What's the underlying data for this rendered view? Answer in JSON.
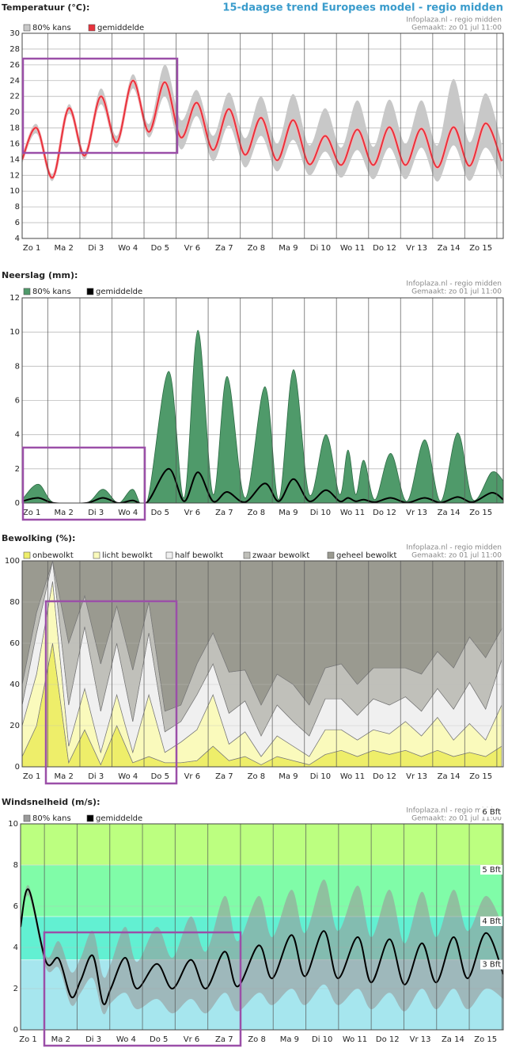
{
  "header": {
    "title": "15-daagse trend Europees model - regio midden"
  },
  "chart_data": [
    {
      "type": "line",
      "title": "Temperatuur (°C):",
      "source": "Infoplaza.nl - regio midden",
      "made": "Gemaakt: zo 01 jul 11:00",
      "x": [
        0.2,
        0.65,
        1.15,
        1.65,
        2.15,
        2.65,
        3.15,
        3.65,
        4.15,
        4.65,
        5.15,
        5.65,
        6.15,
        6.65,
        7.15,
        7.65,
        8.15,
        8.65,
        9.15,
        9.65,
        10.15,
        10.65,
        11.15,
        11.65,
        12.15,
        12.65,
        13.15,
        13.65,
        14.15,
        14.65,
        15.15
      ],
      "xlim": [
        0.2,
        15.2
      ],
      "xticks": [
        {
          "value": 0.5,
          "label": "Zo 1"
        },
        {
          "value": 1.5,
          "label": "Ma 2"
        },
        {
          "value": 2.5,
          "label": "Di 3"
        },
        {
          "value": 3.5,
          "label": "Wo 4"
        },
        {
          "value": 4.5,
          "label": "Do 5"
        },
        {
          "value": 5.5,
          "label": "Vr 6"
        },
        {
          "value": 6.5,
          "label": "Za 7"
        },
        {
          "value": 7.5,
          "label": "Zo 8"
        },
        {
          "value": 8.5,
          "label": "Ma 9"
        },
        {
          "value": 9.5,
          "label": "Di 10"
        },
        {
          "value": 10.5,
          "label": "Wo 11"
        },
        {
          "value": 11.5,
          "label": "Do 12"
        },
        {
          "value": 12.5,
          "label": "Vr 13"
        },
        {
          "value": 13.5,
          "label": "Za 14"
        },
        {
          "value": 14.5,
          "label": "Zo 15"
        }
      ],
      "ylim": [
        4,
        30
      ],
      "yticks": [
        4,
        6,
        8,
        10,
        12,
        14,
        16,
        18,
        20,
        22,
        24,
        26,
        28,
        30
      ],
      "grid": true,
      "series": [
        {
          "name": "80% kans",
          "color": "#c8c8c8",
          "low": [
            13.5,
            17.3,
            11.3,
            19.8,
            14,
            21,
            15.5,
            23,
            16.8,
            22,
            15.3,
            19.5,
            13.8,
            18.3,
            13,
            17,
            12.5,
            16.5,
            12,
            15,
            11.7,
            15.2,
            11.5,
            15.5,
            11.5,
            15.5,
            11.2,
            15.8,
            11.3,
            15.5,
            11.5
          ],
          "high": [
            14.5,
            18.5,
            12.2,
            21,
            15,
            23,
            17,
            24.8,
            18.5,
            26,
            19,
            22.8,
            17,
            22.5,
            16.7,
            22,
            16,
            22.3,
            15.8,
            20.5,
            15.5,
            21.5,
            15.6,
            21.6,
            16,
            21.5,
            15.8,
            24.2,
            16.2,
            22.4,
            16
          ]
        },
        {
          "name": "gemiddelde",
          "color": "#e8323c",
          "values": [
            14,
            18,
            11.7,
            20.5,
            14.5,
            22,
            16.2,
            24,
            17.5,
            23.8,
            16.8,
            21.2,
            15.2,
            20.4,
            14.6,
            19.3,
            13.9,
            19,
            13.4,
            17,
            13.3,
            17.8,
            13.3,
            18.1,
            13.3,
            17.9,
            13,
            18.1,
            13.2,
            18.6,
            13.8
          ]
        }
      ]
    },
    {
      "type": "area",
      "title": "Neerslag (mm):",
      "source": "Infoplaza.nl - regio midden",
      "made": "Gemaakt: zo 01 jul 11:00",
      "x": [
        0.2,
        0.7,
        1.2,
        2.2,
        2.72,
        3.2,
        3.64,
        4.1,
        4.77,
        5.25,
        5.68,
        6.15,
        6.59,
        7.15,
        7.77,
        8.2,
        8.66,
        9.15,
        9.67,
        10.1,
        10.36,
        10.6,
        10.85,
        11.2,
        11.69,
        12.2,
        12.75,
        13.25,
        13.78,
        14.25,
        14.84,
        15.2
      ],
      "xlim": [
        0.2,
        15.2
      ],
      "xticks": [
        {
          "value": 0.5,
          "label": "Zo 1"
        },
        {
          "value": 1.5,
          "label": "Ma 2"
        },
        {
          "value": 2.5,
          "label": "Di 3"
        },
        {
          "value": 3.5,
          "label": "Wo 4"
        },
        {
          "value": 4.5,
          "label": "Do 5"
        },
        {
          "value": 5.5,
          "label": "Vr 6"
        },
        {
          "value": 6.5,
          "label": "Za 7"
        },
        {
          "value": 7.5,
          "label": "Zo 8"
        },
        {
          "value": 8.5,
          "label": "Ma 9"
        },
        {
          "value": 9.5,
          "label": "Di 10"
        },
        {
          "value": 10.5,
          "label": "Wo 11"
        },
        {
          "value": 11.5,
          "label": "Do 12"
        },
        {
          "value": 12.5,
          "label": "Vr 13"
        },
        {
          "value": 13.5,
          "label": "Za 14"
        },
        {
          "value": 14.5,
          "label": "Zo 15"
        }
      ],
      "ylim": [
        0,
        12
      ],
      "yticks": [
        0,
        2,
        4,
        6,
        8,
        10,
        12
      ],
      "grid": true,
      "series": [
        {
          "name": "80% kans",
          "color": "#4f9a6a",
          "values": [
            0.2,
            1.1,
            0,
            0,
            0.8,
            0,
            0.8,
            0.1,
            7.7,
            0.3,
            10.1,
            0.5,
            7.4,
            0.3,
            6.8,
            0.2,
            7.8,
            0.5,
            4,
            0.5,
            3.1,
            0.5,
            2.5,
            0.2,
            2.9,
            0.1,
            3.7,
            0.1,
            4.1,
            0.2,
            1.8,
            1.3
          ]
        },
        {
          "name": "gemiddelde",
          "color": "#000000",
          "values": [
            0.1,
            0.3,
            0,
            0,
            0.3,
            0,
            0.15,
            0.05,
            2,
            0.1,
            1.8,
            0.1,
            0.65,
            0.05,
            1.15,
            0.1,
            1.4,
            0.1,
            0.75,
            0.1,
            0.3,
            0.1,
            0.2,
            0.05,
            0.3,
            0.02,
            0.3,
            0.02,
            0.35,
            0.05,
            0.6,
            0.2
          ]
        }
      ]
    },
    {
      "type": "stacked_area",
      "title": "Bewolking (%):",
      "source": "Infoplaza.nl - regio midden",
      "made": "Gemaakt: zo 01 jul 11:00",
      "x": [
        0.2,
        0.65,
        1.15,
        1.65,
        2.15,
        2.65,
        3.15,
        3.65,
        4.15,
        4.65,
        5.15,
        5.65,
        6.15,
        6.65,
        7.15,
        7.65,
        8.15,
        8.65,
        9.15,
        9.65,
        10.15,
        10.65,
        11.15,
        11.65,
        12.15,
        12.65,
        13.15,
        13.65,
        14.15,
        14.65,
        15.15
      ],
      "xlim": [
        0.2,
        15.2
      ],
      "xticks": [
        {
          "value": 0.5,
          "label": "Zo 1"
        },
        {
          "value": 1.5,
          "label": "Ma 2"
        },
        {
          "value": 2.5,
          "label": "Di 3"
        },
        {
          "value": 3.5,
          "label": "Wo 4"
        },
        {
          "value": 4.5,
          "label": "Do 5"
        },
        {
          "value": 5.5,
          "label": "Vr 6"
        },
        {
          "value": 6.5,
          "label": "Za 7"
        },
        {
          "value": 7.5,
          "label": "Zo 8"
        },
        {
          "value": 8.5,
          "label": "Ma 9"
        },
        {
          "value": 9.5,
          "label": "Di 10"
        },
        {
          "value": 10.5,
          "label": "Wo 11"
        },
        {
          "value": 11.5,
          "label": "Do 12"
        },
        {
          "value": 12.5,
          "label": "Vr 13"
        },
        {
          "value": 13.5,
          "label": "Za 14"
        },
        {
          "value": 14.5,
          "label": "Zo 15"
        }
      ],
      "ylim": [
        0,
        100
      ],
      "yticks": [
        0,
        20,
        40,
        60,
        80,
        100
      ],
      "grid": true,
      "series": [
        {
          "name": "onbewolkt",
          "color": "#eeee6a",
          "values": [
            5,
            20,
            60,
            2,
            18,
            1,
            20,
            2,
            5,
            2,
            2,
            3,
            10,
            3,
            5,
            1,
            5,
            3,
            1,
            6,
            8,
            5,
            8,
            6,
            8,
            5,
            8,
            5,
            7,
            5,
            10
          ]
        },
        {
          "name": "licht bewolkt",
          "color": "#fafabc",
          "values": [
            15,
            25,
            30,
            8,
            20,
            6,
            15,
            5,
            30,
            5,
            10,
            15,
            25,
            8,
            12,
            4,
            10,
            7,
            4,
            12,
            10,
            8,
            10,
            10,
            14,
            10,
            16,
            8,
            14,
            8,
            20
          ]
        },
        {
          "name": "half bewolkt",
          "color": "#f0f0f0",
          "values": [
            10,
            20,
            10,
            20,
            30,
            20,
            25,
            15,
            30,
            10,
            10,
            17,
            15,
            15,
            15,
            10,
            15,
            12,
            10,
            15,
            15,
            12,
            15,
            14,
            12,
            12,
            14,
            15,
            20,
            15,
            22
          ]
        },
        {
          "name": "zwaar bewolkt",
          "color": "#c0c0ba",
          "values": [
            10,
            10,
            0,
            30,
            15,
            23,
            18,
            25,
            15,
            10,
            8,
            15,
            15,
            20,
            15,
            15,
            15,
            18,
            15,
            15,
            17,
            15,
            15,
            18,
            14,
            18,
            18,
            20,
            22,
            25,
            15
          ]
        },
        {
          "name": "geheel bewolkt",
          "color": "#9a9a90",
          "values": [
            60,
            25,
            0,
            40,
            17,
            50,
            22,
            53,
            20,
            73,
            70,
            50,
            35,
            54,
            53,
            70,
            55,
            60,
            70,
            52,
            50,
            60,
            52,
            52,
            52,
            55,
            44,
            52,
            37,
            47,
            33
          ]
        }
      ]
    },
    {
      "type": "line",
      "title": "Windsnelheid (m/s):",
      "source": "Infoplaza.nl - regio midden",
      "made": "Gemaakt: zo 01 jul 11:00",
      "x": [
        0.27,
        0.52,
        1.05,
        1.44,
        1.82,
        2.11,
        2.48,
        2.79,
        3.03,
        3.47,
        3.83,
        4.44,
        4.92,
        5.48,
        5.94,
        6.52,
        6.91,
        7.56,
        7.97,
        8.56,
        8.97,
        9.55,
        9.98,
        10.59,
        11,
        11.56,
        12.02,
        12.55,
        12.99,
        13.52,
        13.95,
        14.51,
        15.04
      ],
      "xlim": [
        0.27,
        15.04
      ],
      "xticks": [
        {
          "value": 0.5,
          "label": "Zo 1"
        },
        {
          "value": 1.5,
          "label": "Ma 2"
        },
        {
          "value": 2.5,
          "label": "Di 3"
        },
        {
          "value": 3.5,
          "label": "Wo 4"
        },
        {
          "value": 4.5,
          "label": "Do 5"
        },
        {
          "value": 5.5,
          "label": "Vr 6"
        },
        {
          "value": 6.5,
          "label": "Za 7"
        },
        {
          "value": 7.5,
          "label": "Zo 8"
        },
        {
          "value": 8.5,
          "label": "Ma 9"
        },
        {
          "value": 9.5,
          "label": "Di 10"
        },
        {
          "value": 10.5,
          "label": "Wo 11"
        },
        {
          "value": 11.5,
          "label": "Do 12"
        },
        {
          "value": 12.5,
          "label": "Vr 13"
        },
        {
          "value": 13.5,
          "label": "Za 14"
        },
        {
          "value": 14.5,
          "label": "Zo 15"
        }
      ],
      "ylim": [
        0,
        10
      ],
      "yticks": [
        0,
        2,
        4,
        6,
        8,
        10
      ],
      "grid": true,
      "base_color": "#a6e6ee",
      "beaufort": [
        {
          "value": 3.4,
          "label": "3 Bft",
          "color": "#62f0d2"
        },
        {
          "value": 5.5,
          "label": "4 Bft",
          "color": "#80fca8"
        },
        {
          "value": 8,
          "label": "5 Bft",
          "color": "#bcff80"
        },
        {
          "value": 10.8,
          "label": "6 Bft",
          "color": "#bcff80"
        }
      ],
      "series": [
        {
          "name": "80% kans",
          "color": "#9a9a9a",
          "low": [
            4.8,
            6.5,
            3,
            3,
            1.2,
            1.8,
            2.5,
            0.8,
            1.3,
            1.8,
            1,
            1.5,
            0.8,
            1.5,
            0.8,
            1.8,
            0.9,
            1.8,
            1.2,
            2,
            1.2,
            2.2,
            1.2,
            2,
            1,
            1.8,
            0.9,
            2,
            1,
            2,
            1,
            2,
            1.5
          ],
          "high": [
            5.2,
            7,
            3.6,
            4.3,
            2.8,
            3.5,
            4.8,
            2.6,
            3.2,
            5,
            3.3,
            5,
            3.5,
            5.5,
            3.8,
            6.5,
            4.3,
            6.5,
            4.5,
            6.8,
            4.7,
            7.3,
            4.8,
            7,
            4.5,
            6.8,
            4.2,
            6.7,
            4.5,
            6.8,
            4.8,
            6.5,
            5
          ]
        },
        {
          "name": "gemiddelde",
          "color": "#000000",
          "values": [
            5,
            6.8,
            3.3,
            3.45,
            1.6,
            2.4,
            3.6,
            1.3,
            2,
            3.5,
            2,
            3.2,
            2,
            3.4,
            2,
            3.8,
            2.1,
            4.1,
            2.5,
            4.6,
            2.6,
            4.8,
            2.5,
            4.5,
            2.3,
            4.4,
            2.2,
            4.2,
            2.3,
            4.5,
            2.5,
            4.7,
            2.7
          ]
        }
      ]
    }
  ]
}
